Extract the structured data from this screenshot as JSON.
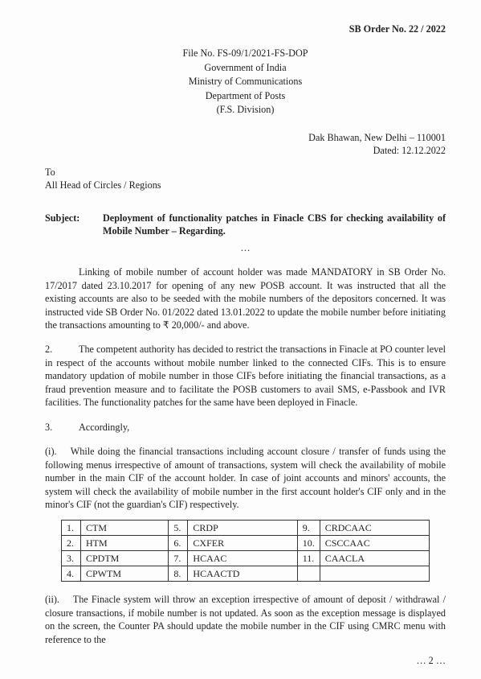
{
  "header": {
    "order_no": "SB Order No.  22 / 2022",
    "file_no": "File No. FS-09/1/2021-FS-DOP",
    "gov": "Government of India",
    "ministry": "Ministry of Communications",
    "dept": "Department of Posts",
    "division": "(F.S. Division)",
    "address": "Dak Bhawan, New Delhi – 110001",
    "dated": "Dated: 12.12.2022"
  },
  "to": {
    "label": "To",
    "addressee": "All Head of Circles / Regions"
  },
  "subject": {
    "label": "Subject:",
    "text": "Deployment of functionality patches in Finacle CBS for checking availability of Mobile Number – Regarding.",
    "sep": "…"
  },
  "paras": {
    "p1": "Linking of mobile number of account holder was made MANDATORY in SB Order No. 17/2017 dated 23.10.2017 for opening of any new POSB account. It was instructed that all the existing accounts are also to be seeded with the mobile numbers of the depositors concerned.  It was instructed vide SB Order No. 01/2022 dated 13.01.2022 to update the mobile number before initiating the transactions amounting to ₹ 20,000/- and above.",
    "p2_num": "2.",
    "p2": "The competent authority has decided to restrict the transactions in Finacle at PO counter level in respect of the accounts without mobile number linked to the connected CIFs. This is to ensure mandatory updation of mobile number in those CIFs before initiating the financial transactions, as a fraud prevention measure and to facilitate the POSB customers to avail SMS, e-Passbook and IVR facilities. The functionality patches for the same have been deployed in Finacle.",
    "p3_num": "3.",
    "p3": "Accordingly,",
    "p3i_num": "(i).",
    "p3i": "While doing the financial transactions including account closure / transfer of funds using the following menus irrespective of amount of transactions, system will check the availability of mobile number in the main CIF of the account holder.  In case of joint accounts and minors' accounts, the system will check the availability of mobile number in the first account holder's CIF only and in the minor's CIF (not the guardian's CIF) respectively.",
    "p3ii_num": "(ii).",
    "p3ii": "The Finacle system will throw an exception irrespective of amount of deposit / withdrawal / closure transactions, if mobile number is not updated. As soon as the exception message is displayed on the screen, the Counter PA should update the mobile number in the CIF using CMRC menu with reference to the"
  },
  "menu_table": {
    "rows": [
      {
        "a_idx": "1.",
        "a_code": "CTM",
        "b_idx": "5.",
        "b_code": "CRDP",
        "c_idx": "9.",
        "c_code": "CRDCAAC"
      },
      {
        "a_idx": "2.",
        "a_code": "HTM",
        "b_idx": "6.",
        "b_code": "CXFER",
        "c_idx": "10.",
        "c_code": "CSCCAAC"
      },
      {
        "a_idx": "3.",
        "a_code": "CPDTM",
        "b_idx": "7.",
        "b_code": "HCAAC",
        "c_idx": "11.",
        "c_code": "CAACLA"
      },
      {
        "a_idx": "4.",
        "a_code": "CPWTM",
        "b_idx": "8.",
        "b_code": "HCAACTD",
        "c_idx": "",
        "c_code": ""
      }
    ]
  },
  "footer": {
    "page_cont": "… 2 …"
  }
}
